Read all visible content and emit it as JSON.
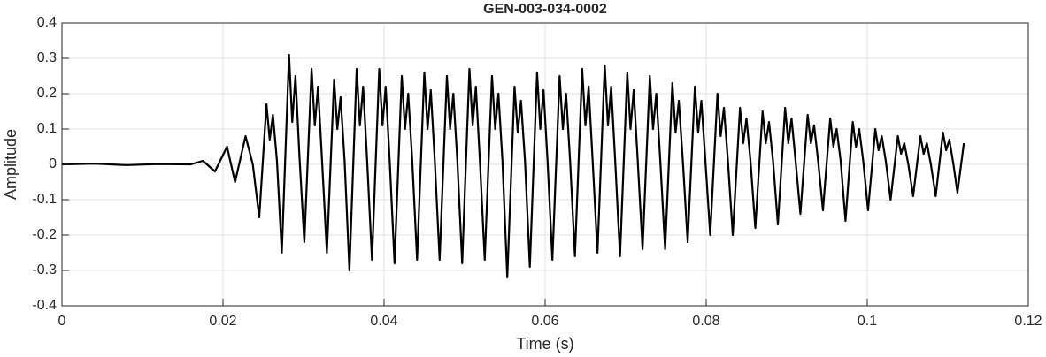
{
  "chart_data": {
    "type": "line",
    "title": "GEN-003-034-0002",
    "x_label": "Time (s)",
    "y_label": "Amplitude",
    "color": "#000000",
    "grid": true,
    "xlim": [
      0,
      0.12
    ],
    "xticks": [
      0,
      0.02,
      0.04,
      0.06,
      0.08,
      0.1,
      0.12
    ],
    "ylim": [
      -0.4,
      0.4
    ],
    "yticks": [
      -0.4,
      -0.3,
      -0.2,
      -0.1,
      0,
      0.1,
      0.2,
      0.3,
      0.4
    ],
    "x": [
      0,
      0.004,
      0.008,
      0.012,
      0.016,
      0.0175,
      0.019,
      0.0205,
      0.0215,
      0.0228,
      0.0237,
      0.0245,
      0.0254,
      0.0258,
      0.0262,
      0.0267,
      0.0273,
      0.0282,
      0.0286,
      0.029,
      0.0295,
      0.0301,
      0.031,
      0.0314,
      0.0318,
      0.0323,
      0.0329,
      0.0338,
      0.0342,
      0.0346,
      0.0351,
      0.0357,
      0.0366,
      0.037,
      0.0374,
      0.0379,
      0.0385,
      0.0394,
      0.0398,
      0.0402,
      0.0407,
      0.0413,
      0.0422,
      0.0426,
      0.043,
      0.0435,
      0.0441,
      0.045,
      0.0454,
      0.0458,
      0.0463,
      0.0469,
      0.0478,
      0.0482,
      0.0486,
      0.0491,
      0.0497,
      0.0506,
      0.051,
      0.0514,
      0.0519,
      0.0525,
      0.0534,
      0.0538,
      0.0542,
      0.0547,
      0.0553,
      0.0562,
      0.0566,
      0.057,
      0.0575,
      0.0581,
      0.059,
      0.0594,
      0.0598,
      0.0603,
      0.0609,
      0.0618,
      0.0622,
      0.0626,
      0.0631,
      0.0637,
      0.0646,
      0.065,
      0.0654,
      0.0659,
      0.0665,
      0.0674,
      0.0678,
      0.0682,
      0.0687,
      0.0693,
      0.0702,
      0.0706,
      0.071,
      0.0715,
      0.0721,
      0.073,
      0.0734,
      0.0738,
      0.0743,
      0.0749,
      0.0758,
      0.0762,
      0.0766,
      0.0771,
      0.0777,
      0.0786,
      0.079,
      0.0794,
      0.0799,
      0.0805,
      0.0814,
      0.0818,
      0.0822,
      0.0827,
      0.0833,
      0.0842,
      0.0846,
      0.085,
      0.0855,
      0.0861,
      0.087,
      0.0874,
      0.0878,
      0.0883,
      0.0889,
      0.0898,
      0.0902,
      0.0906,
      0.0911,
      0.0917,
      0.0926,
      0.093,
      0.0934,
      0.0939,
      0.0945,
      0.0954,
      0.0958,
      0.0962,
      0.0967,
      0.0973,
      0.0982,
      0.0986,
      0.099,
      0.0995,
      0.1001,
      0.101,
      0.1014,
      0.1018,
      0.1023,
      0.1029,
      0.1038,
      0.1042,
      0.1046,
      0.1051,
      0.1057,
      0.1066,
      0.107,
      0.1074,
      0.1079,
      0.1085,
      0.1094,
      0.1098,
      0.1102,
      0.1107,
      0.1112,
      0.112
    ],
    "values": [
      0,
      0.002,
      -0.002,
      0.001,
      0,
      0.01,
      -0.02,
      0.05,
      -0.05,
      0.08,
      0,
      -0.15,
      0.17,
      0.07,
      0.14,
      0.01,
      -0.25,
      0.31,
      0.12,
      0.25,
      0.02,
      -0.22,
      0.27,
      0.11,
      0.22,
      0.01,
      -0.25,
      0.24,
      0.1,
      0.19,
      0.01,
      -0.3,
      0.27,
      0.11,
      0.22,
      0.01,
      -0.27,
      0.27,
      0.11,
      0.22,
      0.01,
      -0.28,
      0.25,
      0.1,
      0.2,
      0.01,
      -0.27,
      0.26,
      0.1,
      0.21,
      0.01,
      -0.27,
      0.25,
      0.1,
      0.2,
      0.01,
      -0.28,
      0.27,
      0.11,
      0.22,
      0.01,
      -0.27,
      0.25,
      0.1,
      0.2,
      0.01,
      -0.32,
      0.22,
      0.09,
      0.18,
      0.01,
      -0.29,
      0.26,
      0.1,
      0.21,
      0.01,
      -0.27,
      0.25,
      0.1,
      0.2,
      0.01,
      -0.26,
      0.27,
      0.11,
      0.22,
      0.01,
      -0.25,
      0.28,
      0.11,
      0.22,
      0.01,
      -0.26,
      0.26,
      0.1,
      0.21,
      0.01,
      -0.24,
      0.25,
      0.1,
      0.2,
      0.01,
      -0.24,
      0.23,
      0.09,
      0.18,
      0.01,
      -0.22,
      0.22,
      0.09,
      0.18,
      0.01,
      -0.2,
      0.2,
      0.08,
      0.16,
      0.01,
      -0.2,
      0.16,
      0.06,
      0.13,
      0.01,
      -0.18,
      0.15,
      0.06,
      0.12,
      0.01,
      -0.17,
      0.16,
      0.06,
      0.13,
      0.01,
      -0.14,
      0.14,
      0.06,
      0.11,
      0.01,
      -0.13,
      0.13,
      0.05,
      0.1,
      0.01,
      -0.16,
      0.12,
      0.05,
      0.1,
      0.01,
      -0.13,
      0.1,
      0.04,
      0.08,
      0.01,
      -0.1,
      0.08,
      0.03,
      0.06,
      0,
      -0.09,
      0.08,
      0.03,
      0.06,
      0,
      -0.09,
      0.09,
      0.04,
      0.07,
      0,
      -0.08,
      0.06
    ]
  }
}
